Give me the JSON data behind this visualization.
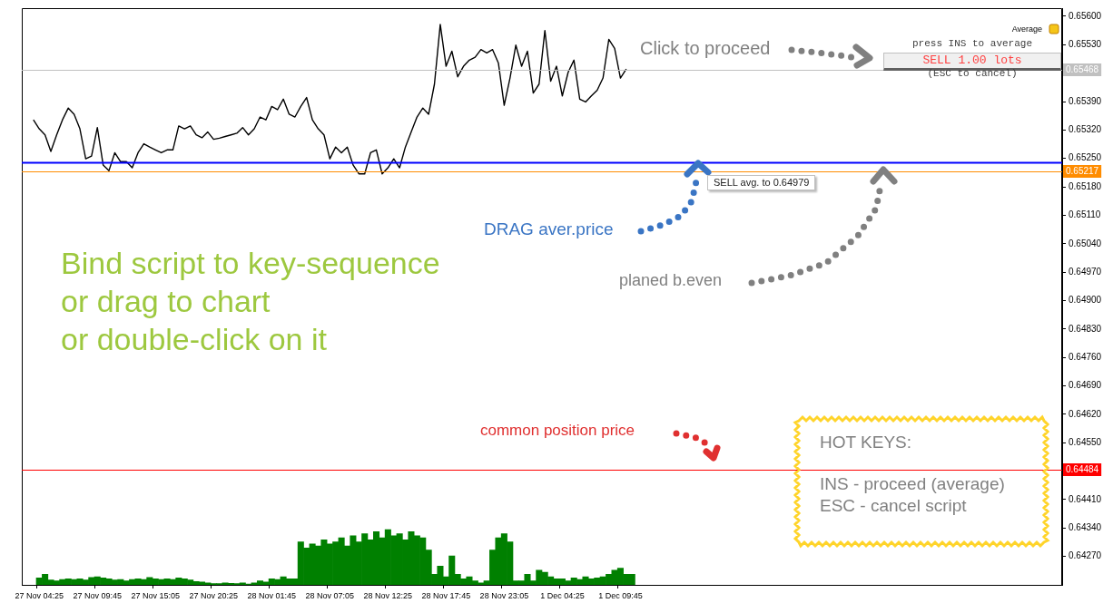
{
  "chart_data": {
    "type": "line",
    "legend": false,
    "grid": false,
    "marker": "none",
    "categories": [
      null,
      null,
      null,
      "27 Nov 04:25",
      null,
      null,
      null,
      null,
      null,
      null,
      null,
      null,
      null,
      "27 Nov 09:45",
      null,
      null,
      null,
      null,
      null,
      null,
      null,
      null,
      null,
      "27 Nov 15:05",
      null,
      null,
      null,
      null,
      null,
      null,
      null,
      null,
      null,
      "27 Nov 20:25",
      null,
      null,
      null,
      null,
      null,
      null,
      null,
      null,
      null,
      "28 Nov 01:45",
      null,
      null,
      null,
      null,
      null,
      null,
      null,
      null,
      null,
      "28 Nov 07:05",
      null,
      null,
      null,
      null,
      null,
      null,
      null,
      null,
      null,
      "28 Nov 12:25",
      null,
      null,
      null,
      null,
      null,
      null,
      null,
      null,
      null,
      "28 Nov 17:45",
      null,
      null,
      null,
      null,
      null,
      null,
      null,
      null,
      null,
      "28 Nov 23:05",
      null,
      null,
      null,
      null,
      null,
      null,
      null,
      null,
      null,
      "1 Dec 04:25",
      null,
      null,
      null,
      null,
      null,
      null,
      null,
      null,
      null,
      "1 Dec 09:45",
      null,
      null,
      null,
      null,
      null,
      null,
      null,
      null,
      null,
      null,
      null,
      null,
      null,
      null,
      null,
      null,
      null,
      null,
      null,
      null,
      null,
      null,
      null,
      null,
      null,
      null,
      null,
      null,
      null,
      null,
      null,
      null,
      null,
      null,
      null,
      null,
      null,
      null,
      null,
      null,
      null,
      null,
      null,
      null,
      null,
      null,
      null,
      null,
      null,
      null,
      null,
      null,
      null,
      null,
      null,
      null,
      null,
      null,
      null,
      null,
      null,
      null,
      null,
      null,
      null,
      null,
      null,
      null,
      null,
      null,
      null,
      null,
      null,
      null,
      null,
      null
    ],
    "ylim": [
      0.642,
      0.6562
    ],
    "yticks": [
      {
        "value": 0.656,
        "label": "0.65600"
      },
      {
        "value": 0.6553,
        "label": "0.65530"
      },
      {
        "value": 0.6539,
        "label": "0.65390"
      },
      {
        "value": 0.6532,
        "label": "0.65320"
      },
      {
        "value": 0.6525,
        "label": "0.65250"
      },
      {
        "value": 0.6518,
        "label": "0.65180"
      },
      {
        "value": 0.6511,
        "label": "0.65110"
      },
      {
        "value": 0.6504,
        "label": "0.65040"
      },
      {
        "value": 0.6497,
        "label": "0.64970"
      },
      {
        "value": 0.649,
        "label": "0.64900"
      },
      {
        "value": 0.6483,
        "label": "0.64830"
      },
      {
        "value": 0.6476,
        "label": "0.64760"
      },
      {
        "value": 0.6469,
        "label": "0.64690"
      },
      {
        "value": 0.6462,
        "label": "0.64620"
      },
      {
        "value": 0.6455,
        "label": "0.64550"
      },
      {
        "value": 0.6441,
        "label": "0.64410"
      },
      {
        "value": 0.6434,
        "label": "0.64340"
      },
      {
        "value": 0.6427,
        "label": "0.64270"
      }
    ],
    "series": [
      {
        "type": "bar",
        "color": "#008000",
        "values": [
          null,
          null,
          null,
          0.64217,
          0.64226,
          0.64212,
          0.6421,
          0.64213,
          0.64215,
          0.64213,
          0.64215,
          0.64212,
          0.64218,
          0.6422,
          0.64217,
          0.64215,
          0.64212,
          0.64213,
          0.6421,
          0.64213,
          0.64215,
          0.64213,
          0.64218,
          0.64215,
          0.64213,
          0.64215,
          0.64213,
          0.64217,
          0.64215,
          0.64212,
          0.64208,
          0.64207,
          0.64205,
          0.64203,
          0.64203,
          0.64205,
          0.64204,
          0.64203,
          0.64205,
          0.64202,
          0.64205,
          0.6421,
          0.64207,
          0.64215,
          0.64213,
          0.6422,
          0.64215,
          0.64215,
          0.64306,
          0.64291,
          0.64301,
          0.64296,
          0.64311,
          0.64301,
          0.64306,
          0.64316,
          0.64296,
          0.64321,
          0.64306,
          0.64326,
          0.64311,
          0.64331,
          0.64316,
          0.64336,
          0.64321,
          0.64326,
          0.64311,
          0.64331,
          0.64321,
          0.64316,
          0.64286,
          0.64226,
          0.64246,
          0.6422,
          0.64271,
          0.64226,
          0.64215,
          0.6422,
          0.6421,
          0.64205,
          0.6421,
          0.64286,
          0.64316,
          0.64326,
          0.64306,
          0.6421,
          0.6421,
          0.64226,
          0.6421,
          0.64236,
          0.64231,
          0.6422,
          0.64215,
          0.64215,
          0.6421,
          0.64217,
          0.64213,
          0.6422,
          0.64215,
          0.64217,
          0.6422,
          0.64226,
          0.64236,
          0.64241,
          0.64226,
          0.64226,
          null,
          null,
          null,
          null,
          null,
          null,
          null,
          null,
          null,
          null,
          null,
          null,
          null,
          null,
          null,
          null,
          null,
          null,
          null,
          null,
          null,
          null,
          null,
          null,
          null,
          null,
          null,
          null,
          null,
          null,
          null,
          null,
          null,
          null,
          null,
          null,
          null,
          null,
          null,
          null,
          null,
          null,
          null,
          null,
          null,
          null,
          null,
          null,
          null,
          null,
          null,
          null,
          null,
          null,
          null,
          null,
          null,
          null,
          null,
          null,
          null,
          null,
          null,
          null,
          null,
          null,
          null,
          null,
          null,
          null,
          null,
          null,
          null,
          null
        ]
      },
      {
        "color": "#000000",
        "values": [
          null,
          null,
          0.65345,
          0.65323,
          0.65308,
          0.65267,
          0.65308,
          0.65345,
          0.65374,
          0.65359,
          0.65323,
          0.65249,
          0.65256,
          0.65326,
          0.65234,
          0.6522,
          0.65264,
          0.65242,
          0.65242,
          0.65227,
          0.65264,
          0.65286,
          0.65278,
          0.65271,
          0.65264,
          0.65271,
          0.65271,
          0.6533,
          0.65323,
          0.6533,
          0.65308,
          0.65301,
          0.65315,
          0.65297,
          0.653,
          0.65304,
          0.65308,
          0.65312,
          0.65326,
          0.65308,
          0.65323,
          0.65352,
          0.65345,
          0.65378,
          0.6537,
          0.65396,
          0.65359,
          0.65352,
          0.65378,
          0.654,
          0.65345,
          0.65323,
          0.65308,
          0.65249,
          0.65278,
          0.65264,
          0.65278,
          0.65234,
          0.65212,
          0.65212,
          0.65264,
          0.65271,
          0.65212,
          0.65227,
          0.65249,
          0.65227,
          0.65278,
          0.65315,
          0.65352,
          0.65374,
          0.65359,
          0.65433,
          0.6558,
          0.65477,
          0.65514,
          0.65451,
          0.65477,
          0.65492,
          0.65499,
          0.65518,
          0.6551,
          0.65518,
          0.65485,
          0.65381,
          0.65448,
          0.65529,
          0.65477,
          0.65514,
          0.65411,
          0.65433,
          0.65565,
          0.6544,
          0.65477,
          0.65404,
          0.65462,
          0.65492,
          0.65396,
          0.65389,
          0.65404,
          0.65418,
          0.65448,
          0.65543,
          0.65521,
          0.65448,
          0.6547,
          null,
          null,
          null,
          null,
          null,
          null,
          null,
          null,
          null,
          null,
          null,
          null,
          null,
          null,
          null,
          null,
          null,
          null,
          null,
          null,
          null,
          null,
          null,
          null,
          null,
          null,
          null,
          null,
          null,
          null,
          null,
          null,
          null,
          null,
          null,
          null,
          null,
          null,
          null,
          null,
          null,
          null,
          null,
          null,
          null,
          null,
          null,
          null,
          null,
          null,
          null,
          null,
          null,
          null,
          null,
          null,
          null,
          null,
          null,
          null,
          null,
          null,
          null,
          null,
          null,
          null,
          null,
          null,
          null,
          null,
          null,
          null,
          null,
          null,
          null
        ]
      }
    ],
    "ref_lines": [
      {
        "axis": "y",
        "value": 0.65468,
        "label": "0.65468",
        "color": "#c0c0c0"
      },
      {
        "axis": "y",
        "value": 0.6524,
        "color": "#0000ff"
      },
      {
        "axis": "y",
        "value": 0.65217,
        "label": "0.65217",
        "color": "#ff8c00"
      },
      {
        "axis": "y",
        "value": 0.64484,
        "label": "0.64484",
        "color": "#ff0000"
      }
    ],
    "annotations": [
      "Average",
      "Click to proceed",
      "press INS to average",
      "SELL 1.00 lots",
      "(ESC to cancel)",
      "SELL avg. to 0.64979",
      "DRAG aver.price",
      "Bind script to key-sequence",
      "or drag to chart",
      "or double-click on it",
      "planed b.even",
      "common position price",
      "HOT KEYS:",
      "INS - proceed (average)",
      "ESC - cancel script"
    ]
  }
}
